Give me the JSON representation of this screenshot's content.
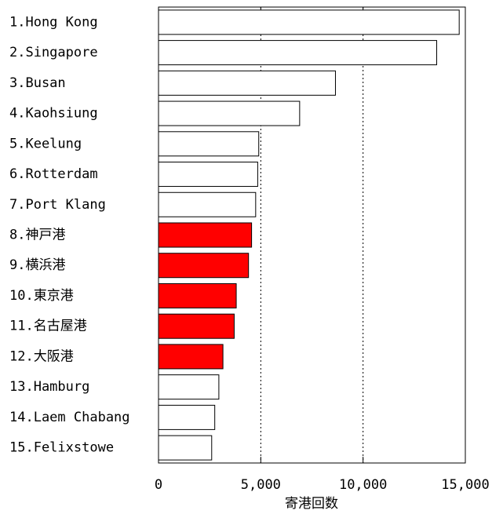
{
  "chart_data": {
    "type": "bar",
    "orientation": "horizontal",
    "x_label": "寄港回数",
    "categories": [
      "1.Hong Kong",
      "2.Singapore",
      "3.Busan",
      "4.Kaohsiung",
      "5.Keelung",
      "6.Rotterdam",
      "7.Port Klang",
      "8.神戸港",
      "9.横浜港",
      "10.東京港",
      "11.名古屋港",
      "12.大阪港",
      "13.Hamburg",
      "14.Laem Chabang",
      "15.Felixstowe"
    ],
    "values": [
      14700,
      13600,
      8650,
      6900,
      4900,
      4850,
      4750,
      4550,
      4400,
      3800,
      3700,
      3150,
      2950,
      2750,
      2600
    ],
    "colors": [
      "#ffffff",
      "#ffffff",
      "#ffffff",
      "#ffffff",
      "#ffffff",
      "#ffffff",
      "#ffffff",
      "#ff0000",
      "#ff0000",
      "#ff0000",
      "#ff0000",
      "#ff0000",
      "#ffffff",
      "#ffffff",
      "#ffffff"
    ],
    "xlim": [
      0,
      15000
    ],
    "xticks": [
      0,
      {
        "value": 5000,
        "label": "5,000"
      },
      {
        "value": 10000,
        "label": "10,000"
      },
      {
        "value": 15000,
        "label": "15,000"
      }
    ],
    "grid": true
  }
}
